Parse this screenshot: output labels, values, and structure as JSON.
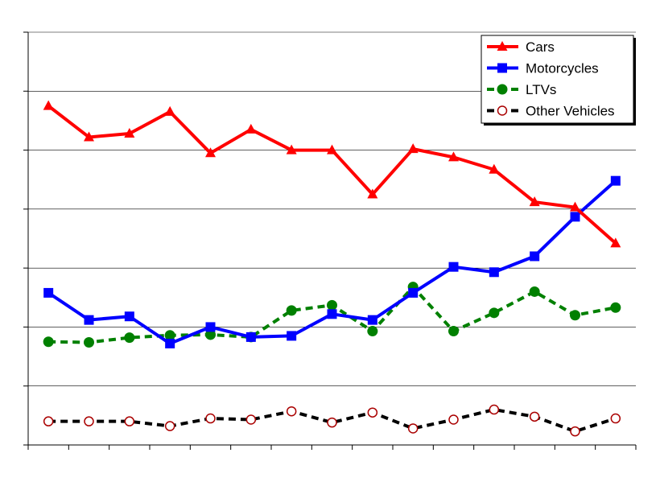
{
  "chart_data": {
    "type": "line",
    "x": [
      1,
      2,
      3,
      4,
      5,
      6,
      7,
      8,
      9,
      10,
      11,
      12,
      13,
      14,
      15
    ],
    "ylim": [
      0,
      7
    ],
    "grid": true,
    "legend_position": "top-right",
    "series": [
      {
        "name": "Cars",
        "color": "#ff0000",
        "line": "solid",
        "marker": "triangle",
        "values": [
          5.75,
          5.22,
          5.28,
          5.65,
          4.95,
          5.35,
          5.0,
          5.0,
          4.25,
          5.02,
          4.88,
          4.67,
          4.12,
          4.03,
          3.42
        ]
      },
      {
        "name": "Motorcycles",
        "color": "#0000ff",
        "line": "solid",
        "marker": "square",
        "values": [
          2.58,
          2.12,
          2.18,
          1.72,
          2.0,
          1.83,
          1.85,
          2.22,
          2.12,
          2.58,
          3.02,
          2.93,
          3.2,
          3.87,
          4.48
        ]
      },
      {
        "name": "LTVs",
        "color": "#008000",
        "line": "dashed",
        "marker": "filled-circle",
        "values": [
          1.75,
          1.74,
          1.82,
          1.86,
          1.87,
          1.83,
          2.28,
          2.37,
          1.93,
          2.68,
          1.93,
          2.24,
          2.6,
          2.2,
          2.33
        ]
      },
      {
        "name": "Other Vehicles",
        "color": "#000000",
        "marker_color": "#aa0000",
        "line": "dashed",
        "marker": "open-circle",
        "values": [
          0.4,
          0.4,
          0.4,
          0.32,
          0.45,
          0.43,
          0.57,
          0.38,
          0.55,
          0.28,
          0.43,
          0.6,
          0.48,
          0.23,
          0.45
        ]
      }
    ]
  }
}
